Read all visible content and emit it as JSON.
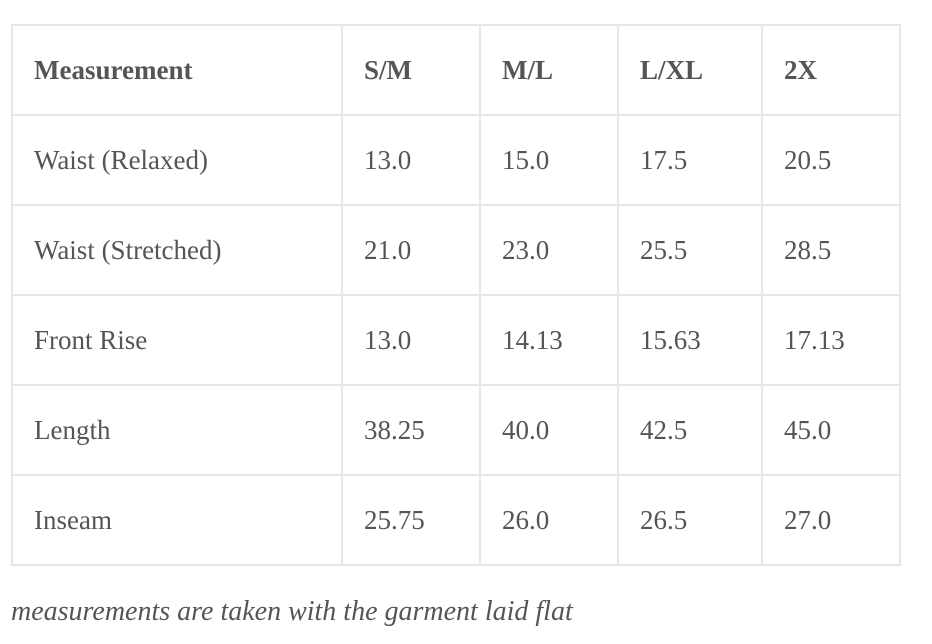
{
  "table": {
    "header": [
      "Measurement",
      "S/M",
      "M/L",
      "L/XL",
      "2X"
    ],
    "rows": [
      [
        "Waist (Relaxed)",
        "13.0",
        "15.0",
        "17.5",
        "20.5"
      ],
      [
        "Waist (Stretched)",
        "21.0",
        "23.0",
        "25.5",
        "28.5"
      ],
      [
        "Front Rise",
        "13.0",
        "14.13",
        "15.63",
        "17.13"
      ],
      [
        "Length",
        "38.25",
        "40.0",
        "42.5",
        "45.0"
      ],
      [
        "Inseam",
        "25.75",
        "26.0",
        "26.5",
        "27.0"
      ]
    ]
  },
  "caption": "measurements are taken with the garment laid flat"
}
